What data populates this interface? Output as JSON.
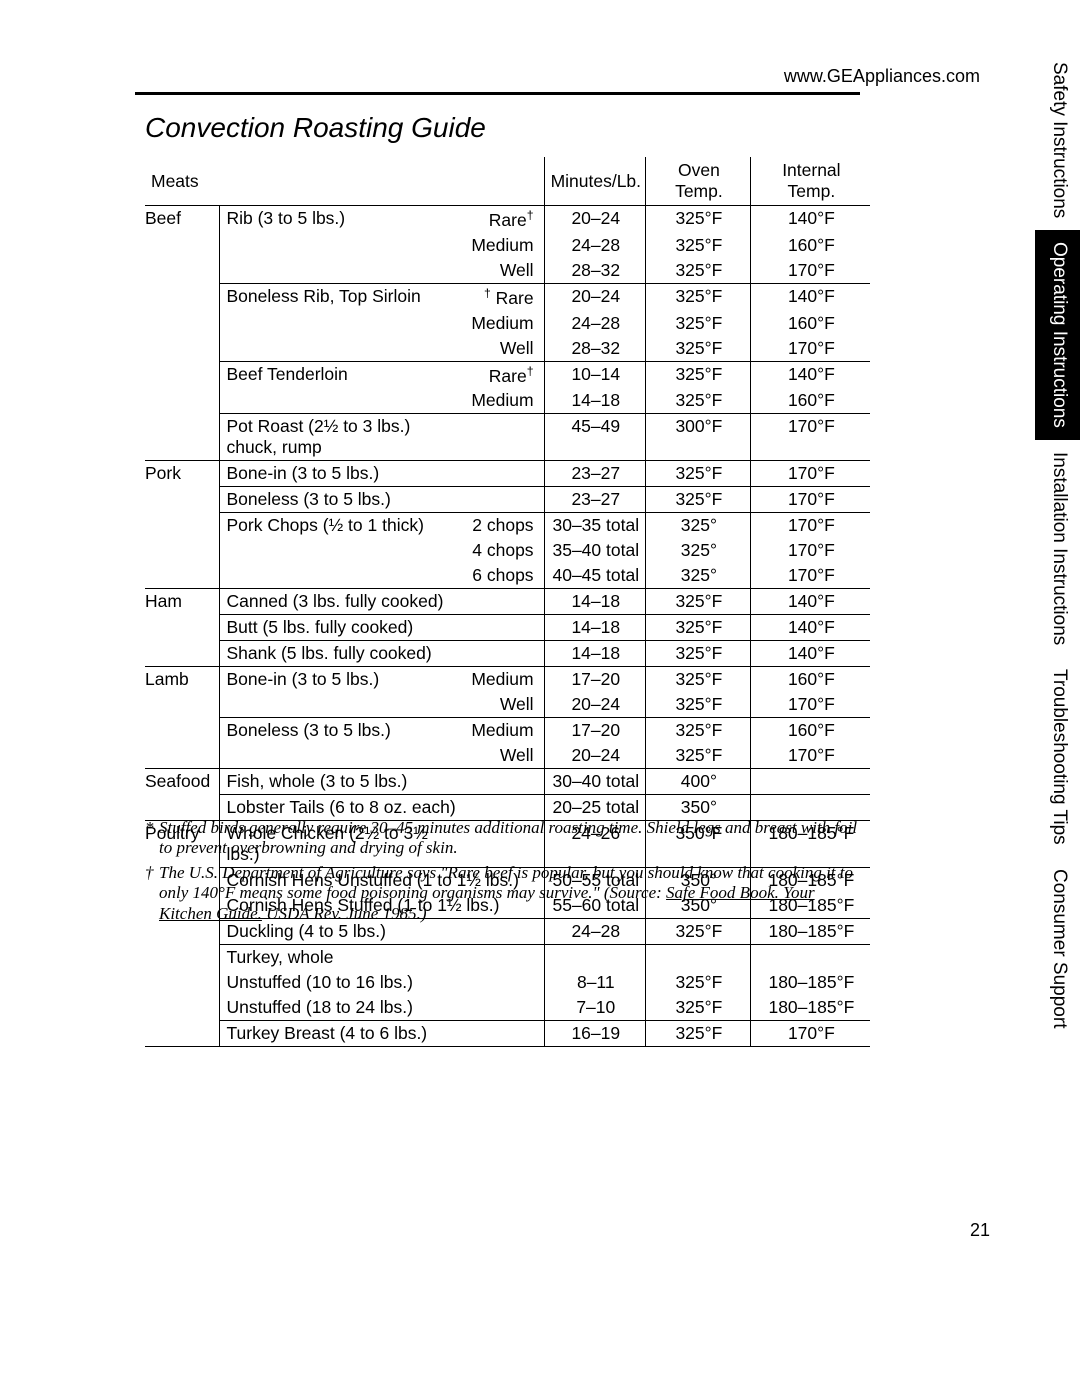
{
  "url": "www.GEAppliances.com",
  "title": "Convection Roasting Guide",
  "page_number": "21",
  "side_tabs": [
    {
      "label": "Safety Instructions",
      "active": false
    },
    {
      "label": "Operating Instructions",
      "active": true
    },
    {
      "label": "Installation Instructions",
      "active": false
    },
    {
      "label": "Troubleshooting Tips",
      "active": false
    },
    {
      "label": "Consumer Support",
      "active": false
    }
  ],
  "headers": {
    "meats": "Meats",
    "minutes": "Minutes/Lb.",
    "oven": "Oven Temp.",
    "internal": "Internal Temp."
  },
  "categories": [
    {
      "name": "Beef",
      "groups": [
        {
          "cut": "Rib (3 to 5 lbs.)",
          "rows": [
            {
              "doneness": "Rare",
              "doneness_sup": "†",
              "minutes": "20–24",
              "oven": "325°F",
              "internal": "140°F"
            },
            {
              "doneness": "Medium",
              "minutes": "24–28",
              "oven": "325°F",
              "internal": "160°F"
            },
            {
              "doneness": "Well",
              "minutes": "28–32",
              "oven": "325°F",
              "internal": "170°F"
            }
          ]
        },
        {
          "cut": "Boneless Rib, Top Sirloin",
          "rows": [
            {
              "doneness": "Rare",
              "doneness_pre_sup": "†",
              "minutes": "20–24",
              "oven": "325°F",
              "internal": "140°F"
            },
            {
              "doneness": "Medium",
              "minutes": "24–28",
              "oven": "325°F",
              "internal": "160°F"
            },
            {
              "doneness": "Well",
              "minutes": "28–32",
              "oven": "325°F",
              "internal": "170°F"
            }
          ]
        },
        {
          "cut": "Beef Tenderloin",
          "rows": [
            {
              "doneness": "Rare",
              "doneness_sup": "†",
              "minutes": "10–14",
              "oven": "325°F",
              "internal": "140°F"
            },
            {
              "doneness": "Medium",
              "minutes": "14–18",
              "oven": "325°F",
              "internal": "160°F"
            }
          ]
        },
        {
          "cut": "Pot Roast (2½ to 3 lbs.) chuck, rump",
          "rows": [
            {
              "doneness": "",
              "minutes": "45–49",
              "oven": "300°F",
              "internal": "170°F"
            }
          ]
        }
      ]
    },
    {
      "name": "Pork",
      "groups": [
        {
          "cut": "Bone-in (3 to 5 lbs.)",
          "rows": [
            {
              "doneness": "",
              "minutes": "23–27",
              "oven": "325°F",
              "internal": "170°F"
            }
          ]
        },
        {
          "cut": "Boneless (3 to 5 lbs.)",
          "rows": [
            {
              "doneness": "",
              "minutes": "23–27",
              "oven": "325°F",
              "internal": "170°F"
            }
          ]
        },
        {
          "cut": "Pork Chops (½ to 1 thick)",
          "rows": [
            {
              "doneness": "2 chops",
              "minutes": "30–35 total",
              "oven": "325°",
              "internal": "170°F"
            },
            {
              "doneness": "4 chops",
              "minutes": "35–40 total",
              "oven": "325°",
              "internal": "170°F"
            },
            {
              "doneness": "6 chops",
              "minutes": "40–45 total",
              "oven": "325°",
              "internal": "170°F"
            }
          ]
        }
      ]
    },
    {
      "name": "Ham",
      "groups": [
        {
          "cut": "Canned (3 lbs. fully cooked)",
          "rows": [
            {
              "doneness": "",
              "minutes": "14–18",
              "oven": "325°F",
              "internal": "140°F"
            }
          ]
        },
        {
          "cut": "Butt (5 lbs. fully cooked)",
          "rows": [
            {
              "doneness": "",
              "minutes": "14–18",
              "oven": "325°F",
              "internal": "140°F"
            }
          ]
        },
        {
          "cut": "Shank (5 lbs. fully cooked)",
          "rows": [
            {
              "doneness": "",
              "minutes": "14–18",
              "oven": "325°F",
              "internal": "140°F"
            }
          ]
        }
      ]
    },
    {
      "name": "Lamb",
      "groups": [
        {
          "cut": "Bone-in (3 to 5 lbs.)",
          "rows": [
            {
              "doneness": "Medium",
              "minutes": "17–20",
              "oven": "325°F",
              "internal": "160°F"
            },
            {
              "doneness": "Well",
              "minutes": "20–24",
              "oven": "325°F",
              "internal": "170°F"
            }
          ]
        },
        {
          "cut": "Boneless (3 to 5 lbs.)",
          "rows": [
            {
              "doneness": "Medium",
              "minutes": "17–20",
              "oven": "325°F",
              "internal": "160°F"
            },
            {
              "doneness": "Well",
              "minutes": "20–24",
              "oven": "325°F",
              "internal": "170°F"
            }
          ]
        }
      ]
    },
    {
      "name": "Seafood",
      "groups": [
        {
          "cut": "Fish, whole (3 to 5 lbs.)",
          "rows": [
            {
              "doneness": "",
              "minutes": "30–40 total",
              "oven": "400°",
              "internal": ""
            }
          ]
        },
        {
          "cut": "Lobster Tails (6 to 8 oz. each)",
          "rows": [
            {
              "doneness": "",
              "minutes": "20–25 total",
              "oven": "350°",
              "internal": ""
            }
          ]
        }
      ]
    },
    {
      "name": "Poultry",
      "groups": [
        {
          "cut": "Whole Chicken (2½ to 3½ lbs.)",
          "rows": [
            {
              "doneness": "",
              "minutes": "24–26",
              "oven": "350°F",
              "internal": "180–185°F"
            }
          ]
        },
        {
          "cut_multi": [
            "Cornish Hens Unstuffed (1 to 1½ lbs.)",
            "Cornish Hens Stuffed (1 to 1½ lbs.)"
          ],
          "rows": [
            {
              "doneness": "",
              "minutes": "50–55 total",
              "oven": "350°",
              "internal": "180–185°F"
            },
            {
              "doneness": "",
              "minutes": "55–60 total",
              "oven": "350°",
              "internal": "180–185°F"
            }
          ]
        },
        {
          "cut": "Duckling (4 to 5 lbs.)",
          "rows": [
            {
              "doneness": "",
              "minutes": "24–28",
              "oven": "325°F",
              "internal": "180–185°F"
            }
          ]
        },
        {
          "cut_multi": [
            "Turkey, whole",
            "Unstuffed (10 to 16 lbs.)",
            "Unstuffed (18 to 24 lbs.)"
          ],
          "rows": [
            {
              "doneness": "",
              "minutes": "",
              "oven": "",
              "internal": ""
            },
            {
              "doneness": "",
              "minutes": "8–11",
              "oven": "325°F",
              "internal": "180–185°F"
            },
            {
              "doneness": "",
              "minutes": "7–10",
              "oven": "325°F",
              "internal": "180–185°F"
            }
          ]
        },
        {
          "cut": "Turkey Breast (4 to 6 lbs.)",
          "rows": [
            {
              "doneness": "",
              "minutes": "16–19",
              "oven": "325°F",
              "internal": "170°F"
            }
          ]
        }
      ]
    }
  ],
  "footnotes": [
    {
      "mark": "*",
      "text": "Stuffed birds generally require 30–45 minutes additional roasting time. Shield legs and breast with foil to prevent overbrowning and drying of skin."
    },
    {
      "mark": "†",
      "text_pre": "The U.S. Department of Agriculture says \"Rare beef is popular, but you should know that cooking it to only 140°F means some food poisoning organisms may survive.\" (Source: ",
      "text_underlined": "Safe Food Book. Your Kitchen Guide.",
      "text_post": " USDA Rev. June 1985.)"
    }
  ]
}
